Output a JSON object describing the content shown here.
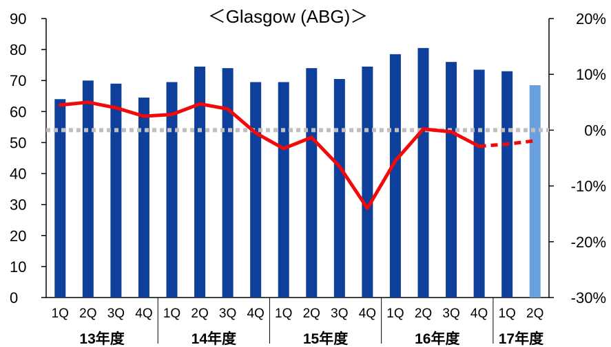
{
  "chart_data": {
    "type": "bar",
    "title": "＜Glasgow (ABG)＞",
    "categories": [
      "1Q",
      "2Q",
      "3Q",
      "4Q",
      "1Q",
      "2Q",
      "3Q",
      "4Q",
      "1Q",
      "2Q",
      "3Q",
      "4Q",
      "1Q",
      "2Q",
      "3Q",
      "4Q",
      "1Q",
      "2Q"
    ],
    "groups": [
      {
        "label": "13年度",
        "count": 4
      },
      {
        "label": "14年度",
        "count": 4
      },
      {
        "label": "15年度",
        "count": 4
      },
      {
        "label": "16年度",
        "count": 4
      },
      {
        "label": "17年度",
        "count": 2
      }
    ],
    "series": [
      {
        "type": "bar",
        "axis": "left",
        "color": "#0D3F9B",
        "highlight_color": "#6A9FE0",
        "highlight_index": 17,
        "values": [
          64,
          70,
          69,
          64.5,
          69.5,
          74.5,
          74,
          69.5,
          69.5,
          74,
          70.5,
          74.5,
          78.5,
          80.5,
          76,
          73.5,
          73,
          68.5
        ]
      },
      {
        "type": "line",
        "axis": "right",
        "color": "#F20A0A",
        "dashed_from_index": 16,
        "values": [
          4.5,
          5.0,
          4.0,
          2.5,
          2.8,
          4.7,
          3.8,
          -0.5,
          -3.3,
          -1.3,
          -6.5,
          -14.0,
          -5.5,
          0.2,
          -0.3,
          -2.9,
          -2.5,
          -1.9
        ]
      }
    ],
    "y_left": {
      "min": 0,
      "max": 90,
      "step": 10,
      "ticks": [
        "0",
        "10",
        "20",
        "30",
        "40",
        "50",
        "60",
        "70",
        "80",
        "90"
      ]
    },
    "y_right": {
      "min": -30,
      "max": 20,
      "step": 10,
      "ticks": [
        "-30%",
        "-20%",
        "-10%",
        "0%",
        "10%",
        "20%"
      ]
    },
    "zero_line": {
      "value": 0,
      "axis": "right",
      "color": "#BFBFBF",
      "style": "dotted"
    },
    "grid": false,
    "legend": "none"
  }
}
